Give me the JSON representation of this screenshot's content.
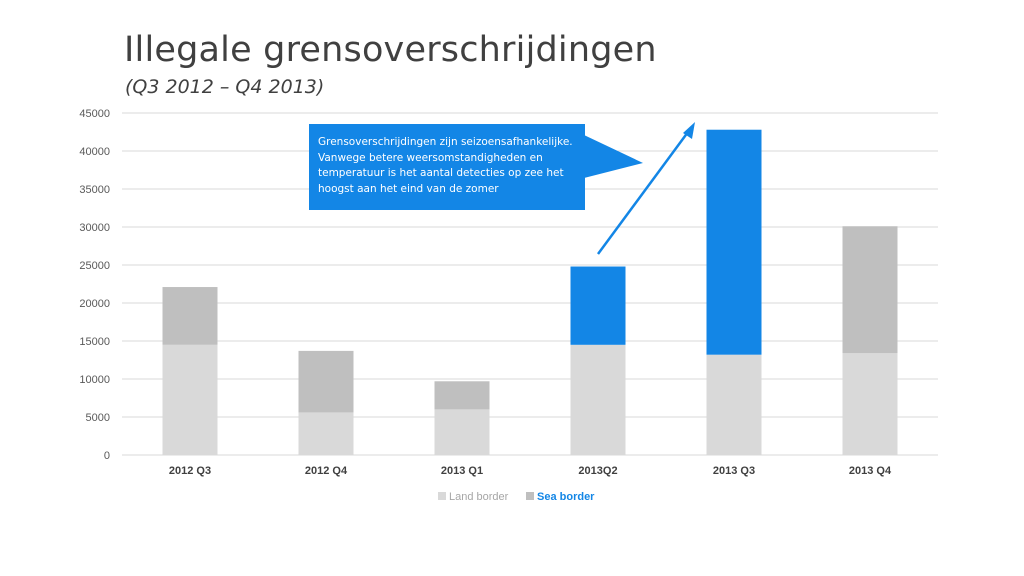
{
  "title": "Illegale grensoverschrijdingen",
  "subtitle": "(Q3 2012 – Q4 2013)",
  "annotation": "Grensoverschrijdingen zijn seizoensafhankelijke. Vanwege betere weersomstandigheden en temperatuur is het aantal detecties op zee het hoogst aan het eind van de zomer",
  "colors": {
    "land": "#d9d9d9",
    "sea_default": "#bfbfbf",
    "sea_highlight": "#1386e6",
    "grid": "#d9d9d9",
    "axis_text": "#595959"
  },
  "chart_data": {
    "type": "bar",
    "stacked": true,
    "categories": [
      "2012 Q3",
      "2012 Q4",
      "2013 Q1",
      "2013Q2",
      "2013 Q3",
      "2013 Q4"
    ],
    "series": [
      {
        "name": "Land border",
        "values": [
          14500,
          5600,
          6000,
          14500,
          13200,
          13400
        ]
      },
      {
        "name": "Sea border",
        "values": [
          7600,
          8100,
          3700,
          10300,
          29600,
          16700
        ]
      }
    ],
    "highlighted_categories": [
      "2013Q2",
      "2013 Q3"
    ],
    "ylim": [
      0,
      45000
    ],
    "yticks": [
      0,
      5000,
      10000,
      15000,
      20000,
      25000,
      30000,
      35000,
      40000,
      45000
    ],
    "grid": true,
    "legend": "bottom-center"
  }
}
